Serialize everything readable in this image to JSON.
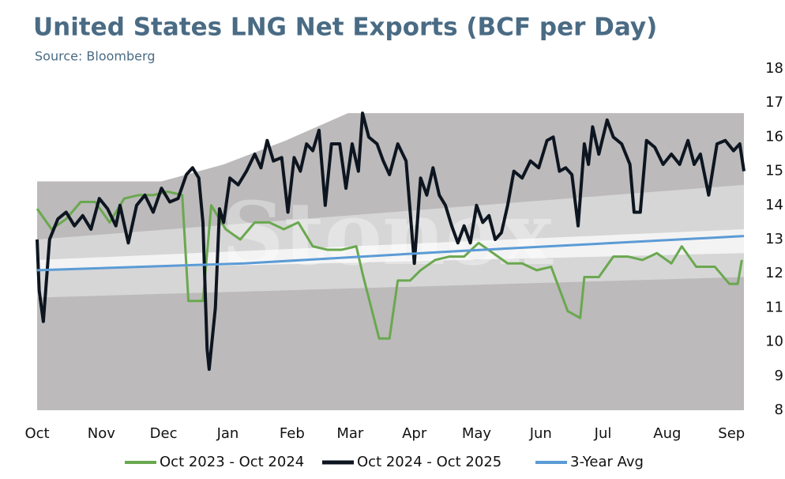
{
  "chart_data": {
    "type": "line",
    "title": "United States LNG Net Exports (BCF per Day)",
    "subtitle": "Source: Bloomberg",
    "watermark": "Stonex",
    "xlim": [
      0,
      341
    ],
    "xticks": [
      {
        "value": 0,
        "label": "Oct"
      },
      {
        "value": 31,
        "label": "Nov"
      },
      {
        "value": 61,
        "label": "Dec"
      },
      {
        "value": 92,
        "label": "Jan"
      },
      {
        "value": 123,
        "label": "Feb"
      },
      {
        "value": 151,
        "label": "Mar"
      },
      {
        "value": 182,
        "label": "Apr"
      },
      {
        "value": 212,
        "label": "May"
      },
      {
        "value": 243,
        "label": "Jun"
      },
      {
        "value": 273,
        "label": "Jul"
      },
      {
        "value": 304,
        "label": "Aug"
      },
      {
        "value": 335,
        "label": "Sep"
      }
    ],
    "ylim": [
      8,
      18
    ],
    "yticks": [
      8,
      9,
      10,
      11,
      12,
      13,
      14,
      15,
      16,
      17,
      18
    ],
    "y_axis_side": "right",
    "grid": false,
    "legend": "bottom",
    "ranges": [
      {
        "color": "#bcbaba",
        "x": [
          0,
          60,
          90,
          120,
          150,
          341
        ],
        "upper": [
          14.7,
          14.7,
          15.2,
          15.9,
          16.7,
          16.7
        ],
        "lower": [
          8,
          8,
          8,
          8,
          8,
          8
        ]
      },
      {
        "color": "#d6d6d6",
        "x": [
          0,
          341
        ],
        "upper": [
          13.0,
          14.6
        ],
        "lower": [
          11.3,
          11.9
        ]
      },
      {
        "color": "#f3f3f3",
        "x": [
          0,
          341
        ],
        "upper": [
          12.4,
          13.3
        ],
        "lower": [
          12.1,
          12.6
        ]
      }
    ],
    "series": [
      {
        "name": "Oct 2023 - Oct 2024",
        "color": "#6aa84f",
        "width": 3,
        "x": [
          0,
          7,
          14,
          21,
          28,
          35,
          42,
          49,
          56,
          63,
          70,
          73,
          80,
          84,
          91,
          98,
          105,
          112,
          119,
          126,
          133,
          140,
          147,
          154,
          157,
          165,
          170,
          174,
          180,
          185,
          192,
          199,
          206,
          213,
          220,
          227,
          234,
          241,
          248,
          256,
          262,
          264,
          271,
          278,
          285,
          292,
          299,
          306,
          311,
          318,
          327,
          334,
          338,
          340
        ],
        "values": [
          13.9,
          13.3,
          13.6,
          14.1,
          14.1,
          13.5,
          14.2,
          14.3,
          14.3,
          14.4,
          14.3,
          11.2,
          11.2,
          14.0,
          13.3,
          13.0,
          13.5,
          13.5,
          13.3,
          13.5,
          12.8,
          12.7,
          12.7,
          12.8,
          12.0,
          10.1,
          10.1,
          11.8,
          11.8,
          12.1,
          12.4,
          12.5,
          12.5,
          12.9,
          12.6,
          12.3,
          12.3,
          12.1,
          12.2,
          10.9,
          10.7,
          11.9,
          11.9,
          12.5,
          12.5,
          12.4,
          12.6,
          12.3,
          12.8,
          12.2,
          12.2,
          11.7,
          11.7,
          12.4
        ]
      },
      {
        "name": "Oct 2024 - Oct 2025",
        "color": "#0d1520",
        "width": 4,
        "x": [
          0,
          1,
          3,
          6,
          10,
          14,
          18,
          22,
          26,
          30,
          34,
          38,
          40,
          44,
          48,
          52,
          56,
          60,
          64,
          68,
          72,
          75,
          78,
          80,
          82,
          83,
          86,
          88,
          90,
          93,
          97,
          101,
          105,
          108,
          111,
          114,
          118,
          121,
          124,
          127,
          130,
          133,
          136,
          139,
          142,
          146,
          149,
          152,
          155,
          157,
          160,
          164,
          167,
          170,
          174,
          178,
          182,
          185,
          188,
          191,
          194,
          197,
          200,
          203,
          206,
          209,
          212,
          215,
          218,
          221,
          224,
          227,
          230,
          234,
          238,
          242,
          246,
          249,
          252,
          255,
          258,
          261,
          264,
          266,
          268,
          271,
          275,
          278,
          282,
          286,
          288,
          291,
          294,
          298,
          302,
          306,
          310,
          314,
          317,
          320,
          324,
          328,
          332,
          336,
          339,
          341
        ],
        "values": [
          13.0,
          11.5,
          10.6,
          13.0,
          13.6,
          13.8,
          13.4,
          13.7,
          13.3,
          14.2,
          13.9,
          13.4,
          14.0,
          12.9,
          14.0,
          14.3,
          13.8,
          14.5,
          14.1,
          14.2,
          14.9,
          15.1,
          14.8,
          13.5,
          9.8,
          9.2,
          11.0,
          13.9,
          13.5,
          14.8,
          14.6,
          15.0,
          15.5,
          15.1,
          15.9,
          15.3,
          15.4,
          13.8,
          15.4,
          15.0,
          15.8,
          15.6,
          16.2,
          14.0,
          15.8,
          15.8,
          14.5,
          15.8,
          15.0,
          16.7,
          16.0,
          15.8,
          15.3,
          14.9,
          15.8,
          15.3,
          12.3,
          14.8,
          14.3,
          15.1,
          14.3,
          14.0,
          13.4,
          12.9,
          13.4,
          12.9,
          14.0,
          13.5,
          13.7,
          13.0,
          13.2,
          14.0,
          15.0,
          14.8,
          15.3,
          15.1,
          15.9,
          16.0,
          15.0,
          15.1,
          14.9,
          13.4,
          15.8,
          15.2,
          16.3,
          15.5,
          16.5,
          16.0,
          15.8,
          15.2,
          13.8,
          13.8,
          15.9,
          15.7,
          15.2,
          15.5,
          15.2,
          15.9,
          15.2,
          15.5,
          14.3,
          15.8,
          15.9,
          15.6,
          15.8,
          15.0
        ]
      },
      {
        "name": "3-Year Avg",
        "color": "#5b9bd5",
        "width": 3,
        "x": [
          0,
          100,
          200,
          341
        ],
        "values": [
          12.1,
          12.3,
          12.65,
          13.1
        ]
      }
    ]
  }
}
